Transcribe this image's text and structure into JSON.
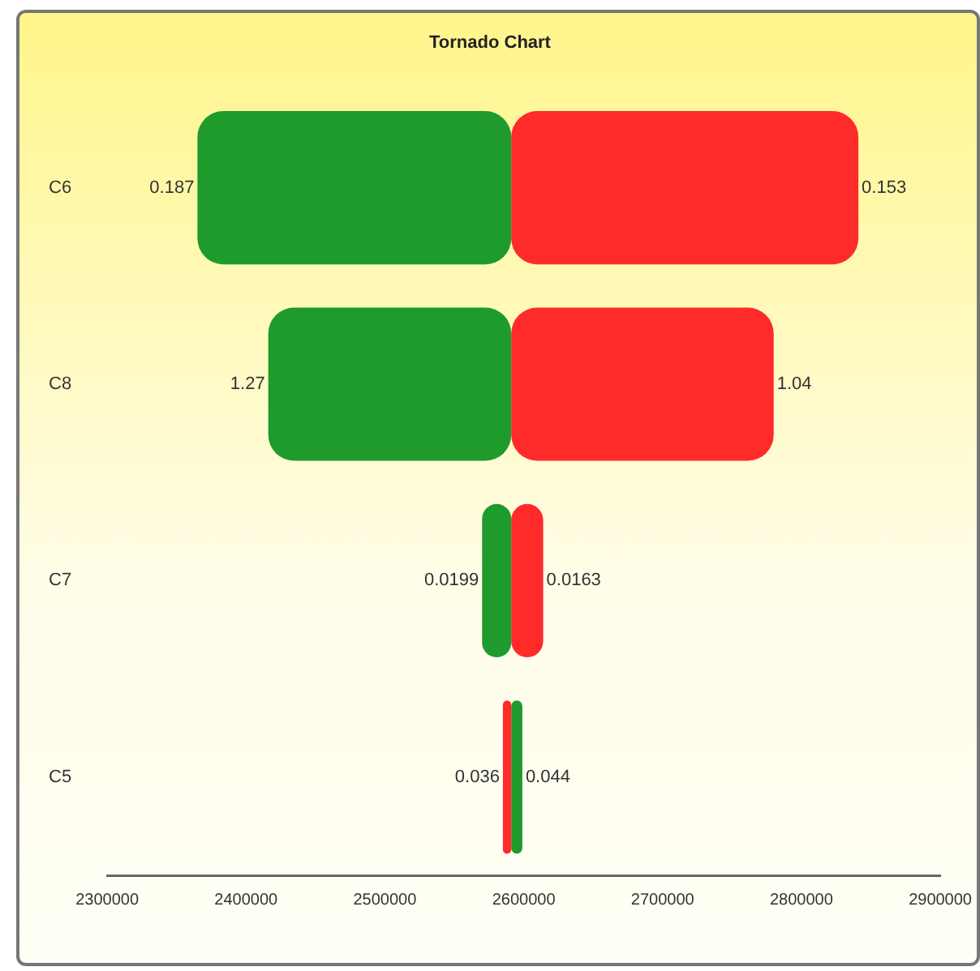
{
  "chart_data": {
    "type": "bar",
    "orientation": "horizontal",
    "title": "Tornado Chart",
    "categories": [
      "C6",
      "C8",
      "C7",
      "C5"
    ],
    "series": [
      {
        "base": [
          2365000,
          2416000,
          2570000,
          2585000
        ],
        "values": [
          226000,
          175000,
          21000,
          6000
        ],
        "colors": [
          "#1f9a2c",
          "#1f9a2c",
          "#1f9a2c",
          "#ff2a2a"
        ]
      },
      {
        "base": [
          2591000,
          2591000,
          2591000,
          2591000
        ],
        "values": [
          250000,
          189000,
          23000,
          8000
        ],
        "colors": [
          "#ff2a2a",
          "#ff2a2a",
          "#ff2a2a",
          "#1f9a2c"
        ]
      }
    ],
    "annotations": [
      {
        "text": "0.187",
        "x": 2365000,
        "y": "C6"
      },
      {
        "text": "1.27",
        "x": 2416000,
        "y": "C8"
      },
      {
        "text": "0.0199",
        "x": 2570000,
        "y": "C7"
      },
      {
        "text": "0.036",
        "x": 2585000,
        "y": "C5"
      },
      {
        "text": "0.153",
        "x": 2841000,
        "y": "C6"
      },
      {
        "text": "1.04",
        "x": 2780000,
        "y": "C8"
      },
      {
        "text": "0.0163",
        "x": 2614000,
        "y": "C7"
      },
      {
        "text": "0.044",
        "x": 2599000,
        "y": "C5"
      }
    ],
    "xlim": [
      2300000,
      2900000
    ],
    "xticks": [
      2300000,
      2400000,
      2500000,
      2600000,
      2700000,
      2800000,
      2900000
    ],
    "grid": false,
    "legend": false
  }
}
